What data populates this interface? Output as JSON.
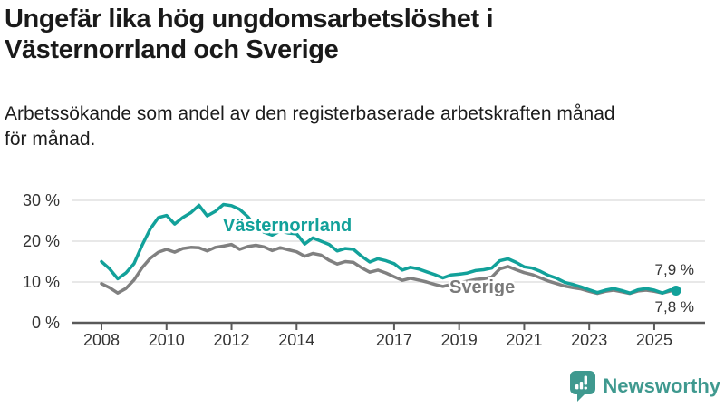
{
  "header": {
    "title_line1": "Ungefär lika hög ungdomsarbetslöshet i",
    "title_line2": "Västernorrland och Sverige",
    "subtitle_line1": "Arbetssökande som andel av den registerbaserade arbetskraften månad",
    "subtitle_line2": "för månad."
  },
  "footer": {
    "brand": "Newsworthy",
    "brand_icon": "speech-bubble-with-bar-chart-and-exclamation"
  },
  "colors": {
    "accent_teal": "#12a19a",
    "series_gray": "#808080",
    "logo_teal": "#3f998f",
    "axis": "#595959",
    "tick_label": "#333333",
    "gridline": "#d9d9d9",
    "title_text": "#1a1a1a"
  },
  "chart_data": {
    "type": "line",
    "unit": "%",
    "grid": "horizontal",
    "legend": "inline-labels",
    "xlim": [
      2007.9,
      2026.4
    ],
    "ylim": [
      0,
      32
    ],
    "xticks": [
      2008,
      2010,
      2012,
      2014,
      2017,
      2019,
      2021,
      2023,
      2025
    ],
    "yticks": [
      {
        "value": 0,
        "label": "0 %"
      },
      {
        "value": 10,
        "label": "10 %"
      },
      {
        "value": 20,
        "label": "20 %"
      },
      {
        "value": 30,
        "label": "30 %"
      }
    ],
    "x_years": [
      2008,
      2008.25,
      2008.5,
      2008.75,
      2009,
      2009.25,
      2009.5,
      2009.75,
      2010,
      2010.25,
      2010.5,
      2010.75,
      2011,
      2011.25,
      2011.5,
      2011.75,
      2012,
      2012.25,
      2012.5,
      2012.75,
      2013,
      2013.25,
      2013.5,
      2013.75,
      2014,
      2014.25,
      2014.5,
      2014.75,
      2015,
      2015.25,
      2015.5,
      2015.75,
      2016,
      2016.25,
      2016.5,
      2016.75,
      2017,
      2017.25,
      2017.5,
      2017.75,
      2018,
      2018.25,
      2018.5,
      2018.75,
      2019,
      2019.25,
      2019.5,
      2019.75,
      2020,
      2020.25,
      2020.5,
      2020.75,
      2021,
      2021.25,
      2021.5,
      2021.75,
      2022,
      2022.25,
      2022.5,
      2022.75,
      2023,
      2023.25,
      2023.5,
      2023.75,
      2024,
      2024.25,
      2024.5,
      2024.75,
      2025,
      2025.25,
      2025.5,
      2025.67
    ],
    "series": [
      {
        "name": "Västernorrland",
        "color": "#12a19a",
        "end_value": 7.9,
        "end_label": "7,9 %",
        "values": [
          15.0,
          13.2,
          10.8,
          12.2,
          14.5,
          19.0,
          23.0,
          25.8,
          26.3,
          24.2,
          25.8,
          27.0,
          28.8,
          26.2,
          27.3,
          29.0,
          28.7,
          27.8,
          26.0,
          23.5,
          22.2,
          21.5,
          22.5,
          22.0,
          21.8,
          19.3,
          20.8,
          20.0,
          19.2,
          17.6,
          18.2,
          18.0,
          16.3,
          14.9,
          15.7,
          15.2,
          14.5,
          12.9,
          13.6,
          13.2,
          12.5,
          11.8,
          11.0,
          11.7,
          11.9,
          12.2,
          12.8,
          13.0,
          13.4,
          15.2,
          15.7,
          14.8,
          13.7,
          13.4,
          12.6,
          11.6,
          10.9,
          9.9,
          9.4,
          8.8,
          8.1,
          7.4,
          8.0,
          8.4,
          7.9,
          7.3,
          8.1,
          8.4,
          8.0,
          7.3,
          8.1,
          7.9
        ]
      },
      {
        "name": "Sverige",
        "color": "#808080",
        "end_value": 7.8,
        "end_label": "7,8 %",
        "values": [
          9.6,
          8.6,
          7.3,
          8.4,
          10.5,
          13.5,
          15.8,
          17.3,
          18.0,
          17.3,
          18.2,
          18.5,
          18.4,
          17.6,
          18.5,
          18.8,
          19.2,
          18.0,
          18.7,
          19.0,
          18.6,
          17.7,
          18.4,
          17.9,
          17.4,
          16.3,
          17.0,
          16.6,
          15.3,
          14.4,
          15.0,
          14.8,
          13.5,
          12.4,
          12.9,
          12.2,
          11.3,
          10.4,
          10.9,
          10.5,
          10.0,
          9.4,
          8.9,
          9.4,
          9.8,
          10.2,
          10.6,
          10.8,
          11.2,
          13.2,
          13.8,
          13.0,
          12.3,
          11.8,
          11.0,
          10.2,
          9.6,
          9.0,
          8.6,
          8.3,
          7.7,
          7.2,
          7.7,
          8.0,
          7.6,
          7.2,
          7.8,
          8.0,
          7.7,
          7.3,
          7.8,
          7.8
        ]
      }
    ]
  }
}
